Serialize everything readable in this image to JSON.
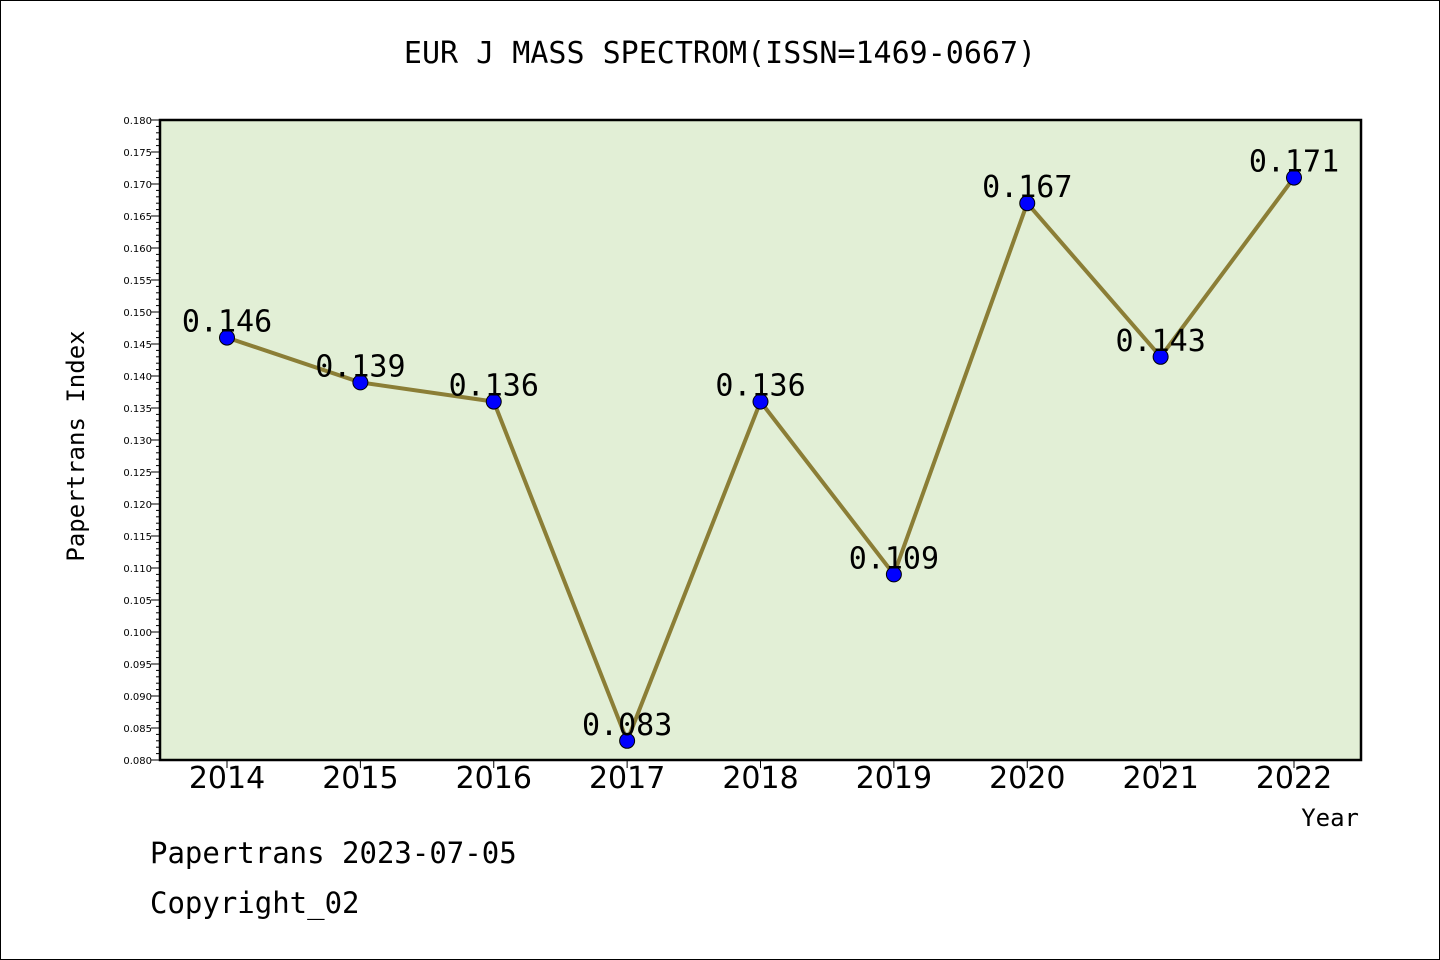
{
  "chart_data": {
    "type": "line",
    "title": "EUR J MASS SPECTROM(ISSN=1469-0667)",
    "xlabel": "Year",
    "ylabel": "Papertrans Index",
    "x": [
      "2014",
      "2015",
      "2016",
      "2017",
      "2018",
      "2019",
      "2020",
      "2021",
      "2022"
    ],
    "series": [
      {
        "values": [
          0.146,
          0.139,
          0.136,
          0.083,
          0.136,
          0.109,
          0.167,
          0.143,
          0.171
        ],
        "data_labels": [
          "0.146",
          "0.139",
          "0.136",
          "0.083",
          "0.136",
          "0.109",
          "0.167",
          "0.143",
          "0.171"
        ]
      }
    ],
    "ylim": [
      0.08,
      0.18
    ],
    "yticks": [
      "0.080",
      "0.085",
      "0.090",
      "0.095",
      "0.100",
      "0.105",
      "0.110",
      "0.115",
      "0.120",
      "0.125",
      "0.130",
      "0.135",
      "0.140",
      "0.145",
      "0.150",
      "0.155",
      "0.160",
      "0.165",
      "0.170",
      "0.175",
      "0.180"
    ],
    "grid": false,
    "colors": {
      "plot_background": "#e2efd6",
      "line": "#8b7e36",
      "marker": "#0000ff"
    }
  },
  "footer": {
    "line1": "Papertrans 2023-07-05",
    "line2": "Copyright_02"
  }
}
